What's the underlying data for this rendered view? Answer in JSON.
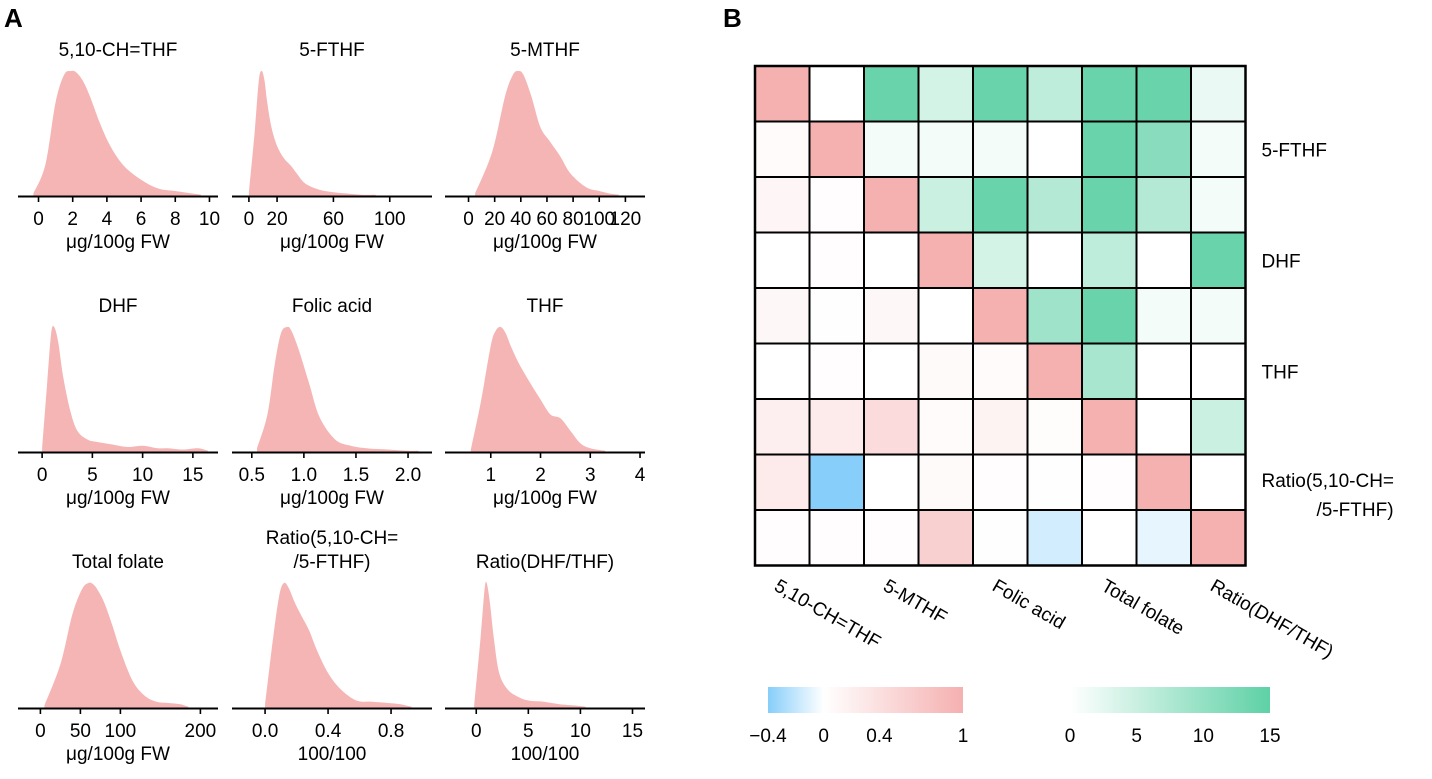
{
  "panel_labels": {
    "a": "A",
    "b": "B"
  },
  "colors": {
    "density_fill": "#f5b5b5",
    "pearson_low": "#87cefa",
    "pearson_mid": "#ffffff",
    "pearson_high": "#f5b0b0",
    "neglog_low": "#ffffff",
    "neglog_high": "#5ed1a6"
  },
  "chart_data": [
    {
      "type": "area",
      "title": "5,10-CH=THF",
      "xlabel": "μg/100g  FW",
      "xlim": [
        -1.2,
        10.5
      ],
      "ticks": [
        0,
        2,
        4,
        6,
        8,
        10
      ],
      "density": {
        "x": [
          -0.3,
          0.4,
          1.0,
          1.5,
          1.9,
          2.2,
          2.6,
          3.0,
          3.6,
          4.2,
          5.0,
          6.0,
          7.0,
          8.0,
          9.0,
          9.5
        ],
        "y": [
          0.02,
          0.25,
          0.75,
          0.97,
          1.0,
          0.99,
          0.92,
          0.8,
          0.58,
          0.4,
          0.24,
          0.13,
          0.06,
          0.04,
          0.02,
          0.01
        ]
      }
    },
    {
      "type": "area",
      "title": "5-FTHF",
      "xlabel": "μg/100g  FW",
      "xlim": [
        -12,
        130
      ],
      "ticks": [
        0,
        20,
        60,
        100
      ],
      "density": {
        "x": [
          0,
          4,
          7,
          9,
          11,
          13,
          16,
          20,
          25,
          30,
          34,
          40,
          50,
          60,
          70,
          80,
          90
        ],
        "y": [
          0.03,
          0.5,
          0.92,
          1.0,
          0.93,
          0.75,
          0.55,
          0.4,
          0.3,
          0.24,
          0.18,
          0.1,
          0.05,
          0.03,
          0.02,
          0.01,
          0.01
        ]
      }
    },
    {
      "type": "area",
      "title": "5-MTHF",
      "xlabel": "μg/100g  FW",
      "xlim": [
        -18,
        135
      ],
      "ticks": [
        0,
        20,
        40,
        60,
        80,
        100,
        120
      ],
      "density": {
        "x": [
          5,
          18,
          28,
          34,
          38,
          42,
          48,
          55,
          62,
          70,
          78,
          90,
          100,
          108,
          115
        ],
        "y": [
          0.02,
          0.35,
          0.8,
          0.97,
          1.0,
          0.97,
          0.8,
          0.55,
          0.44,
          0.32,
          0.18,
          0.07,
          0.04,
          0.02,
          0.01
        ]
      }
    },
    {
      "type": "area",
      "title": "DHF",
      "xlabel": "μg/100g  FW",
      "xlim": [
        -2.4,
        17.5
      ],
      "ticks": [
        0,
        5,
        10,
        15
      ],
      "density": {
        "x": [
          0,
          0.5,
          0.9,
          1.2,
          1.6,
          2.1,
          2.8,
          3.5,
          4.5,
          5.5,
          7,
          8.5,
          10,
          11.5,
          12.5,
          14,
          15.5,
          16.5
        ],
        "y": [
          0.03,
          0.55,
          0.95,
          1.0,
          0.88,
          0.6,
          0.33,
          0.17,
          0.1,
          0.08,
          0.06,
          0.04,
          0.05,
          0.03,
          0.03,
          0.02,
          0.03,
          0.01
        ]
      }
    },
    {
      "type": "area",
      "title": "Folic acid",
      "xlabel": "μg/100g  FW",
      "xlim": [
        0.31,
        2.23
      ],
      "ticks": [
        0.5,
        1.0,
        1.5,
        2.0
      ],
      "density": {
        "x": [
          0.55,
          0.65,
          0.72,
          0.78,
          0.84,
          0.88,
          0.95,
          1.05,
          1.15,
          1.3,
          1.45,
          1.6,
          1.8,
          2.0,
          2.1
        ],
        "y": [
          0.03,
          0.3,
          0.7,
          0.95,
          1.0,
          0.97,
          0.82,
          0.55,
          0.28,
          0.1,
          0.05,
          0.03,
          0.02,
          0.01,
          0.01
        ]
      }
    },
    {
      "type": "area",
      "title": "THF",
      "xlabel": "μg/100g  FW",
      "xlim": [
        0.08,
        4.1
      ],
      "ticks": [
        1,
        2,
        3,
        4
      ],
      "density": {
        "x": [
          0.6,
          0.8,
          1.0,
          1.1,
          1.2,
          1.3,
          1.4,
          1.55,
          1.75,
          2.0,
          2.2,
          2.4,
          2.6,
          2.8,
          3.0,
          3.3
        ],
        "y": [
          0.02,
          0.4,
          0.85,
          0.97,
          1.0,
          0.95,
          0.85,
          0.72,
          0.58,
          0.42,
          0.3,
          0.27,
          0.17,
          0.07,
          0.03,
          0.01
        ]
      }
    },
    {
      "type": "area",
      "title": "Total folate",
      "xlabel": "μg/100g  FW",
      "xlim": [
        -28,
        222
      ],
      "ticks": [
        0,
        50,
        100,
        200
      ],
      "density": {
        "x": [
          5,
          25,
          40,
          52,
          60,
          66,
          72,
          80,
          90,
          100,
          115,
          130,
          145,
          160,
          175,
          185
        ],
        "y": [
          0.02,
          0.35,
          0.75,
          0.95,
          1.0,
          0.99,
          0.94,
          0.84,
          0.66,
          0.46,
          0.22,
          0.1,
          0.05,
          0.04,
          0.03,
          0.01
        ]
      }
    },
    {
      "type": "area",
      "title": "Ratio(5,10-CH=\n/5-FTHF)",
      "xlabel": "100/100",
      "xlim": [
        -0.21,
        1.06
      ],
      "ticks": [
        0.0,
        0.4,
        0.8
      ],
      "density": {
        "x": [
          0.0,
          0.05,
          0.09,
          0.12,
          0.15,
          0.19,
          0.23,
          0.28,
          0.33,
          0.4,
          0.48,
          0.58,
          0.68,
          0.78,
          0.86,
          0.93
        ],
        "y": [
          0.03,
          0.55,
          0.9,
          1.0,
          0.96,
          0.84,
          0.74,
          0.62,
          0.46,
          0.28,
          0.15,
          0.06,
          0.05,
          0.04,
          0.03,
          0.01
        ]
      }
    },
    {
      "type": "area",
      "title": "Ratio(DHF/THF)",
      "xlabel": "100/100",
      "xlim": [
        -3.0,
        16.2
      ],
      "ticks": [
        0,
        5,
        10,
        15
      ],
      "density": {
        "x": [
          -0.2,
          0.4,
          0.8,
          1.0,
          1.3,
          1.7,
          2.2,
          3.0,
          4.0,
          5.0,
          6.5,
          8.0,
          9.5,
          10.5
        ],
        "y": [
          0.02,
          0.55,
          0.95,
          1.0,
          0.85,
          0.55,
          0.28,
          0.15,
          0.09,
          0.06,
          0.05,
          0.03,
          0.02,
          0.01
        ]
      }
    },
    {
      "type": "heatmap",
      "title": "",
      "row_labels": [
        "5,10-CH=THF",
        "5-FTHF",
        "5-MTHF",
        "DHF",
        "Folic acid",
        "THF",
        "Total folate",
        "Ratio(5,10-CH=\n/5-FTHF)",
        "Ratio(DHF/THF)"
      ],
      "visible_x_labels": [
        "5,10-CH=THF",
        "5-MTHF",
        "Folic acid",
        "Total folate",
        "Ratio(DHF/THF)"
      ],
      "visible_y_labels": [
        "5-FTHF",
        "DHF",
        "THF",
        "Ratio(5,10-CH=\n/5-FTHF)"
      ],
      "lower_triangle_metric": "pearson_r",
      "upper_triangle_metric": "neg_log10_p",
      "diagonal_value": 1,
      "matrix": [
        [
          1,
          0,
          14,
          4,
          14,
          6,
          14,
          14,
          2
        ],
        [
          0.05,
          1,
          1,
          1,
          1,
          0,
          14,
          11,
          1
        ],
        [
          0.12,
          0.02,
          1,
          5,
          14,
          7,
          14,
          7,
          1
        ],
        [
          0,
          0.02,
          0,
          1,
          4,
          0,
          6,
          0,
          14
        ],
        [
          0.1,
          0.01,
          0.1,
          0,
          1,
          9,
          14,
          1,
          1
        ],
        [
          0,
          0.03,
          0,
          0.06,
          0.05,
          1,
          8,
          0,
          0
        ],
        [
          0.2,
          0.25,
          0.45,
          0.05,
          0.15,
          0.04,
          1,
          0,
          5
        ],
        [
          0.25,
          -0.4,
          0,
          0.06,
          0.02,
          0.01,
          0.02,
          1,
          0
        ],
        [
          0.02,
          0.02,
          0.02,
          0.6,
          0.01,
          -0.15,
          0,
          -0.08,
          1
        ]
      ],
      "colorbars": [
        {
          "metric": "pearson_r",
          "range": [
            -0.4,
            1
          ],
          "tick_labels": [
            "−0.4",
            "0",
            "0.4",
            "1"
          ],
          "tick_values": [
            -0.4,
            0,
            0.4,
            1
          ]
        },
        {
          "metric": "neg_log10_p",
          "range": [
            0,
            15
          ],
          "tick_labels": [
            "0",
            "5",
            "10",
            "15"
          ],
          "tick_values": [
            0,
            5,
            10,
            15
          ]
        }
      ]
    }
  ]
}
